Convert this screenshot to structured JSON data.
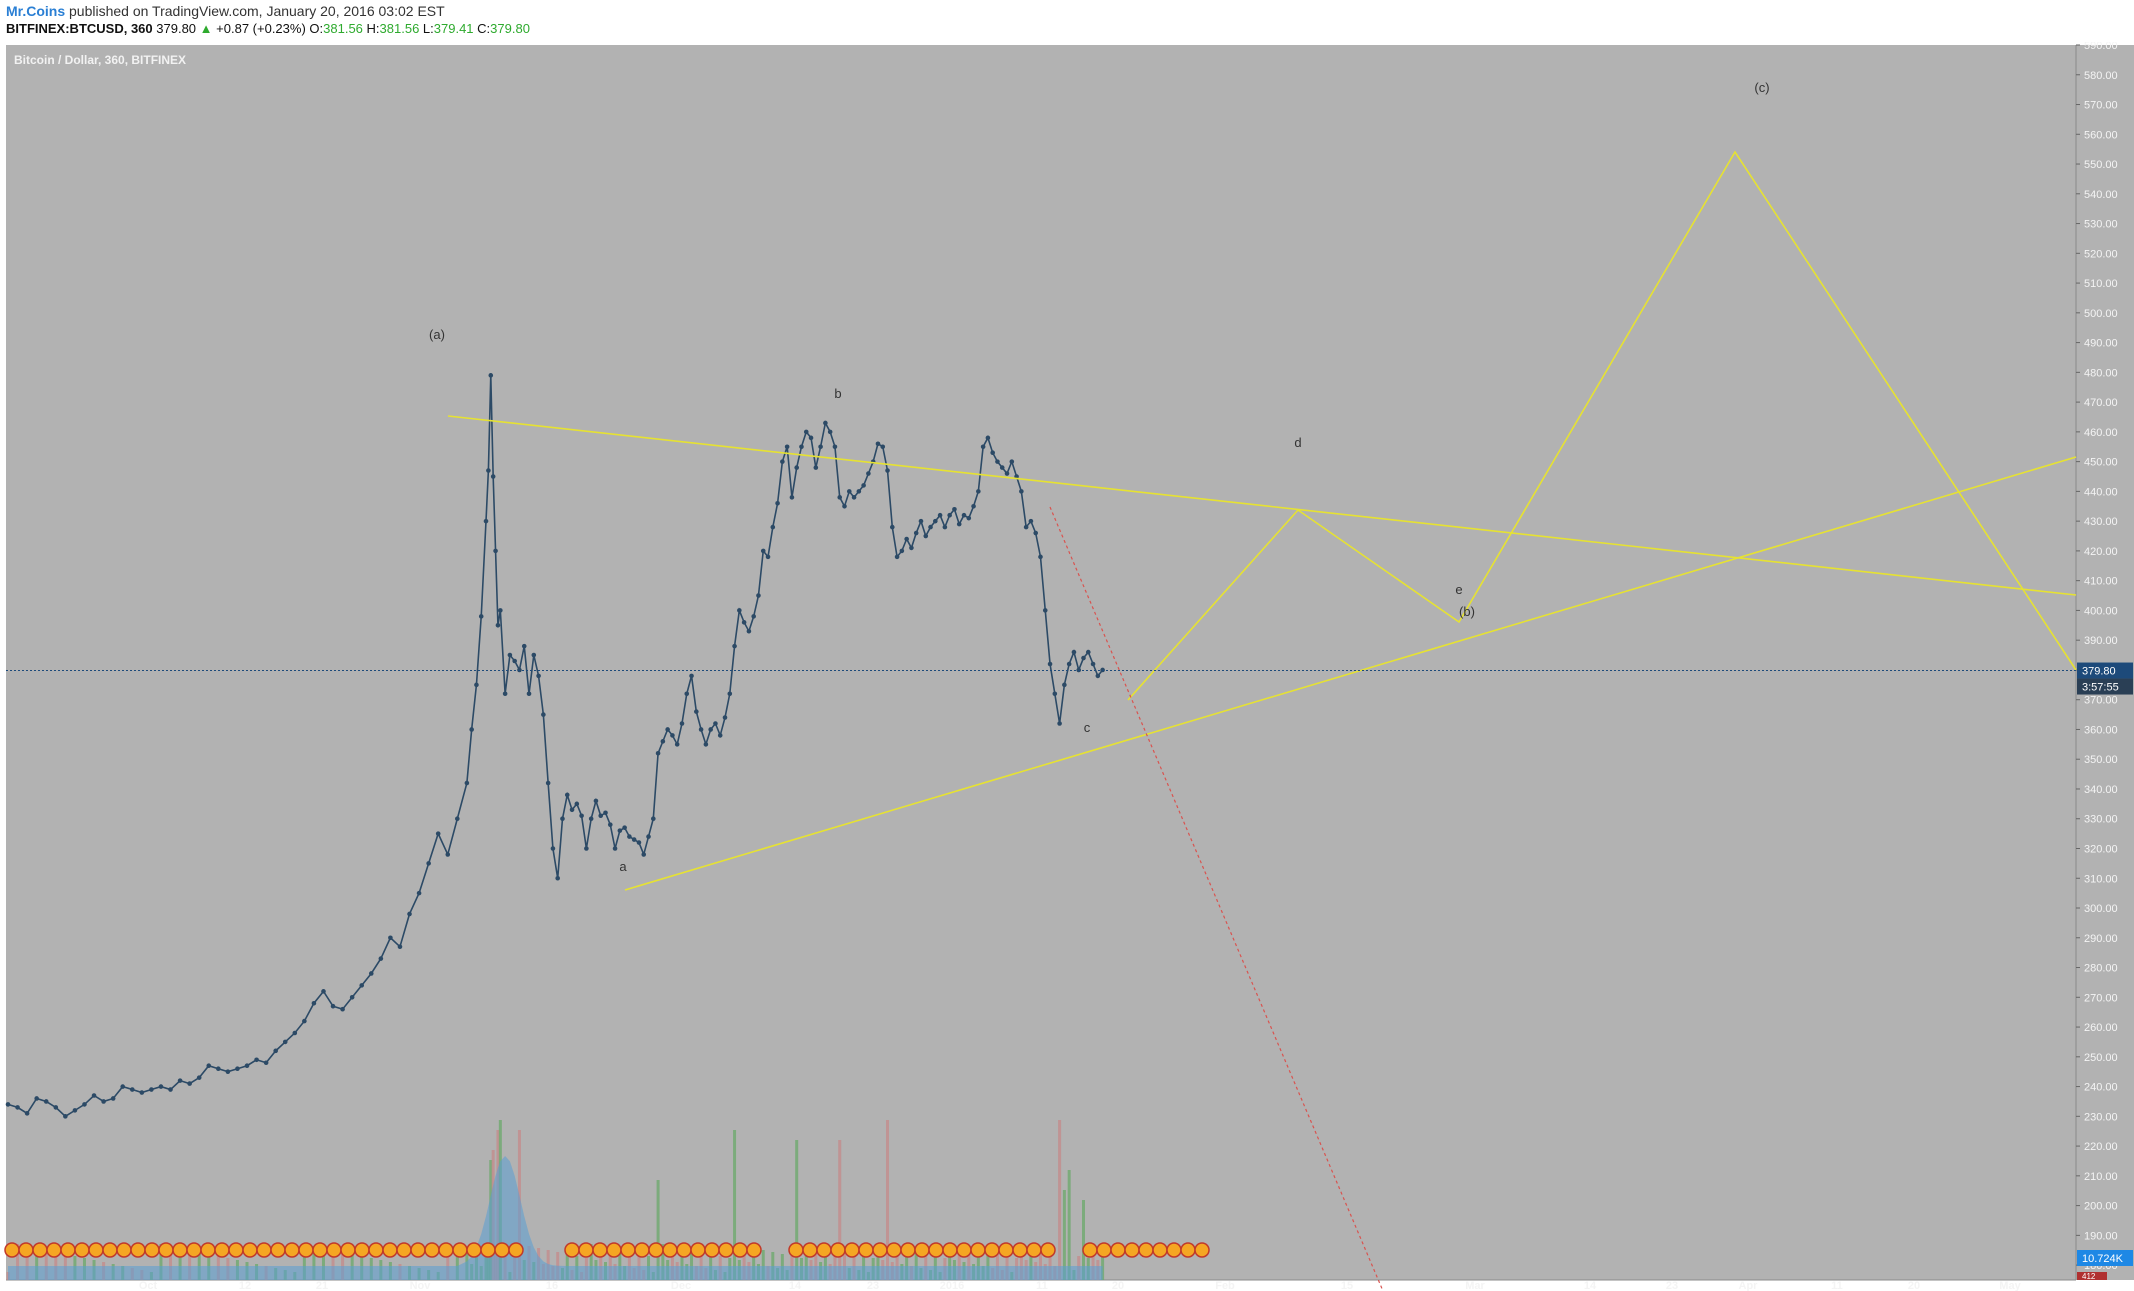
{
  "header": {
    "user": "Mr.Coins",
    "published_text": "published on TradingView.com, January 20, 2016 03:02 EST",
    "symbol": "BITFINEX:BTCUSD, 360",
    "last": "379.80",
    "change": "+0.87 (+0.23%)",
    "o_label": "O:",
    "o_val": "381.56",
    "h_label": "H:",
    "h_val": "381.56",
    "l_label": "L:",
    "l_val": "379.41",
    "c_label": "C:",
    "c_val": "379.80"
  },
  "chart_title": "Bitcoin / Dollar, 360, BITFINEX",
  "colors": {
    "background": "#b2b2b2",
    "price_line": "#2c4a66",
    "wave_lines": "#e6e232",
    "projection": "#d9534f",
    "price_badge": "#1d4a7a",
    "volume_badge": "#1e88e5",
    "volume_up": "#6aa86a",
    "volume_down": "#c48a8a",
    "volume_ma": "#5a9fd4"
  },
  "chart_data": {
    "type": "line",
    "title": "Bitcoin / Dollar, 360, BITFINEX",
    "ylim": [
      175,
      590
    ],
    "grid": false,
    "y_ticks": [
      180,
      190,
      200,
      210,
      220,
      230,
      240,
      250,
      260,
      270,
      280,
      290,
      300,
      310,
      320,
      330,
      340,
      350,
      360,
      370,
      380,
      390,
      400,
      410,
      420,
      430,
      440,
      450,
      460,
      470,
      480,
      490,
      500,
      510,
      520,
      530,
      540,
      550,
      560,
      570,
      580,
      590
    ],
    "x_ticks": [
      "Oct",
      "12",
      "21",
      "Nov",
      "16",
      "Dec",
      "14",
      "23",
      "2016",
      "11",
      "20",
      "Feb",
      "15",
      "Mar",
      "14",
      "23",
      "Apr",
      "11",
      "20",
      "May"
    ],
    "price_series": [
      [
        0,
        234
      ],
      [
        4,
        233
      ],
      [
        8,
        231
      ],
      [
        12,
        236
      ],
      [
        16,
        235
      ],
      [
        20,
        233
      ],
      [
        24,
        230
      ],
      [
        28,
        232
      ],
      [
        32,
        234
      ],
      [
        36,
        237
      ],
      [
        40,
        235
      ],
      [
        44,
        236
      ],
      [
        48,
        240
      ],
      [
        52,
        239
      ],
      [
        56,
        238
      ],
      [
        60,
        239
      ],
      [
        64,
        240
      ],
      [
        68,
        239
      ],
      [
        72,
        242
      ],
      [
        76,
        241
      ],
      [
        80,
        243
      ],
      [
        84,
        247
      ],
      [
        88,
        246
      ],
      [
        92,
        245
      ],
      [
        96,
        246
      ],
      [
        100,
        247
      ],
      [
        104,
        249
      ],
      [
        108,
        248
      ],
      [
        112,
        252
      ],
      [
        116,
        255
      ],
      [
        120,
        258
      ],
      [
        124,
        262
      ],
      [
        128,
        268
      ],
      [
        132,
        272
      ],
      [
        136,
        267
      ],
      [
        140,
        266
      ],
      [
        144,
        270
      ],
      [
        148,
        274
      ],
      [
        152,
        278
      ],
      [
        156,
        283
      ],
      [
        160,
        290
      ],
      [
        164,
        287
      ],
      [
        168,
        298
      ],
      [
        172,
        305
      ],
      [
        176,
        315
      ],
      [
        180,
        325
      ],
      [
        184,
        318
      ],
      [
        188,
        330
      ],
      [
        192,
        342
      ],
      [
        194,
        360
      ],
      [
        196,
        375
      ],
      [
        198,
        398
      ],
      [
        200,
        430
      ],
      [
        201,
        447
      ],
      [
        202,
        479
      ],
      [
        203,
        445
      ],
      [
        204,
        420
      ],
      [
        205,
        395
      ],
      [
        206,
        400
      ],
      [
        208,
        372
      ],
      [
        210,
        385
      ],
      [
        212,
        383
      ],
      [
        214,
        380
      ],
      [
        216,
        388
      ],
      [
        218,
        372
      ],
      [
        220,
        385
      ],
      [
        222,
        378
      ],
      [
        224,
        365
      ],
      [
        226,
        342
      ],
      [
        228,
        320
      ],
      [
        230,
        310
      ],
      [
        232,
        330
      ],
      [
        234,
        338
      ],
      [
        236,
        333
      ],
      [
        238,
        335
      ],
      [
        240,
        331
      ],
      [
        242,
        320
      ],
      [
        244,
        330
      ],
      [
        246,
        336
      ],
      [
        248,
        331
      ],
      [
        250,
        332
      ],
      [
        252,
        328
      ],
      [
        254,
        320
      ],
      [
        256,
        326
      ],
      [
        258,
        327
      ],
      [
        260,
        324
      ],
      [
        262,
        323
      ],
      [
        264,
        322
      ],
      [
        266,
        318
      ],
      [
        268,
        324
      ],
      [
        270,
        330
      ],
      [
        272,
        352
      ],
      [
        274,
        356
      ],
      [
        276,
        360
      ],
      [
        278,
        358
      ],
      [
        280,
        355
      ],
      [
        282,
        362
      ],
      [
        284,
        372
      ],
      [
        286,
        378
      ],
      [
        288,
        366
      ],
      [
        290,
        360
      ],
      [
        292,
        355
      ],
      [
        294,
        360
      ],
      [
        296,
        362
      ],
      [
        298,
        358
      ],
      [
        300,
        364
      ],
      [
        302,
        372
      ],
      [
        304,
        388
      ],
      [
        306,
        400
      ],
      [
        308,
        396
      ],
      [
        310,
        393
      ],
      [
        312,
        398
      ],
      [
        314,
        405
      ],
      [
        316,
        420
      ],
      [
        318,
        418
      ],
      [
        320,
        428
      ],
      [
        322,
        436
      ],
      [
        324,
        450
      ],
      [
        326,
        455
      ],
      [
        328,
        438
      ],
      [
        330,
        448
      ],
      [
        332,
        455
      ],
      [
        334,
        460
      ],
      [
        336,
        458
      ],
      [
        338,
        448
      ],
      [
        340,
        455
      ],
      [
        342,
        463
      ],
      [
        344,
        460
      ],
      [
        346,
        455
      ],
      [
        348,
        438
      ],
      [
        350,
        435
      ],
      [
        352,
        440
      ],
      [
        354,
        438
      ],
      [
        356,
        440
      ],
      [
        358,
        442
      ],
      [
        360,
        446
      ],
      [
        362,
        450
      ],
      [
        364,
        456
      ],
      [
        366,
        455
      ],
      [
        368,
        447
      ],
      [
        370,
        428
      ],
      [
        372,
        418
      ],
      [
        374,
        420
      ],
      [
        376,
        424
      ],
      [
        378,
        421
      ],
      [
        380,
        426
      ],
      [
        382,
        430
      ],
      [
        384,
        425
      ],
      [
        386,
        428
      ],
      [
        388,
        430
      ],
      [
        390,
        432
      ],
      [
        392,
        428
      ],
      [
        394,
        432
      ],
      [
        396,
        434
      ],
      [
        398,
        429
      ],
      [
        400,
        432
      ],
      [
        402,
        431
      ],
      [
        404,
        435
      ],
      [
        406,
        440
      ],
      [
        408,
        455
      ],
      [
        410,
        458
      ],
      [
        412,
        453
      ],
      [
        414,
        450
      ],
      [
        416,
        448
      ],
      [
        418,
        446
      ],
      [
        420,
        450
      ],
      [
        422,
        445
      ],
      [
        424,
        440
      ],
      [
        426,
        428
      ],
      [
        428,
        430
      ],
      [
        430,
        426
      ],
      [
        432,
        418
      ],
      [
        434,
        400
      ],
      [
        436,
        382
      ],
      [
        438,
        372
      ],
      [
        440,
        362
      ],
      [
        442,
        375
      ],
      [
        444,
        382
      ],
      [
        446,
        386
      ],
      [
        448,
        380
      ],
      [
        450,
        384
      ],
      [
        452,
        386
      ],
      [
        454,
        382
      ],
      [
        456,
        378
      ],
      [
        458,
        380
      ]
    ],
    "wave_points": [
      [
        480,
        "(a)"
      ],
      [
        464,
        "b"
      ],
      [
        458,
        "d"
      ],
      [
        404,
        "e"
      ],
      [
        366,
        "c"
      ],
      [
        320,
        "a"
      ],
      [
        567,
        "(c)"
      ],
      [
        396,
        "(b)"
      ]
    ],
    "wave_labels": [
      "(a)",
      "b",
      "d",
      "e",
      "(b)",
      "c",
      "a",
      "(c)"
    ],
    "last_price": "379.80",
    "countdown": "3:57:55",
    "volume_label": "10.724K",
    "volume_badge_small": "412"
  }
}
